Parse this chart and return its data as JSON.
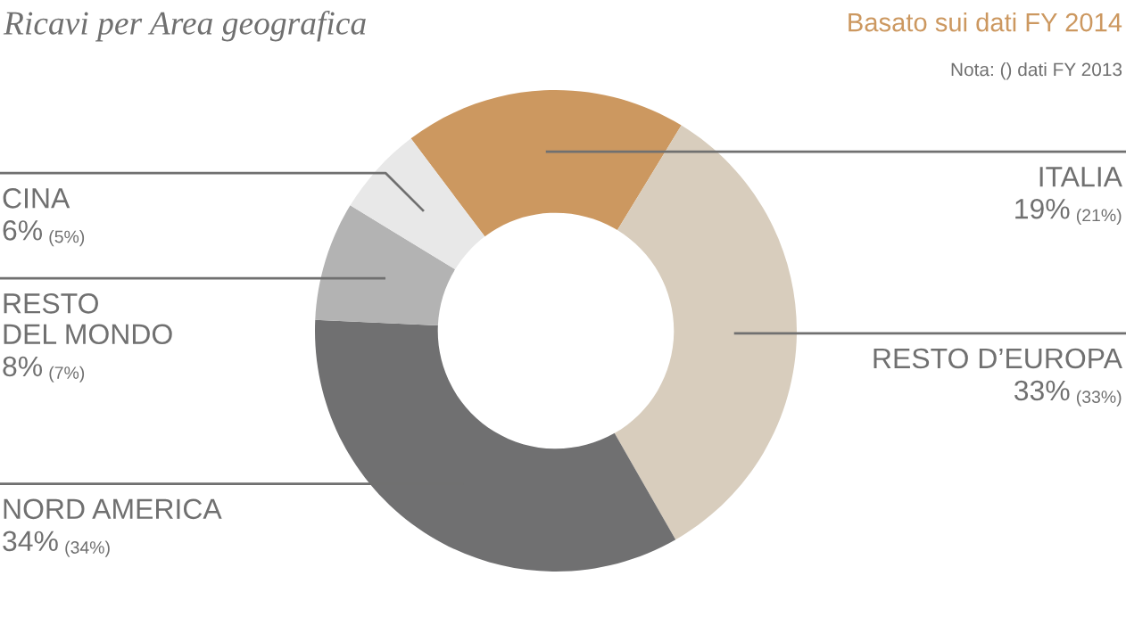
{
  "chart_data": {
    "type": "donut",
    "title": "Ricavi per Area geografica",
    "subtitle": "Basato sui dati FY 2014",
    "annotations": [
      "Nota: () dati FY 2013"
    ],
    "categories": [
      "ITALIA",
      "RESTO D’EUROPA",
      "NORD AMERICA",
      "RESTO\nDEL MONDO",
      "CINA"
    ],
    "values": [
      19,
      33,
      34,
      8,
      6
    ],
    "value_labels": [
      "19% (21%)",
      "33% (33%)",
      "34% (34%)",
      "8% (7%)",
      "6% (5%)"
    ],
    "colors": [
      "#cc9860",
      "#d8cdbd",
      "#707071",
      "#b3b3b3",
      "#e8e8e8"
    ],
    "legend": false
  }
}
